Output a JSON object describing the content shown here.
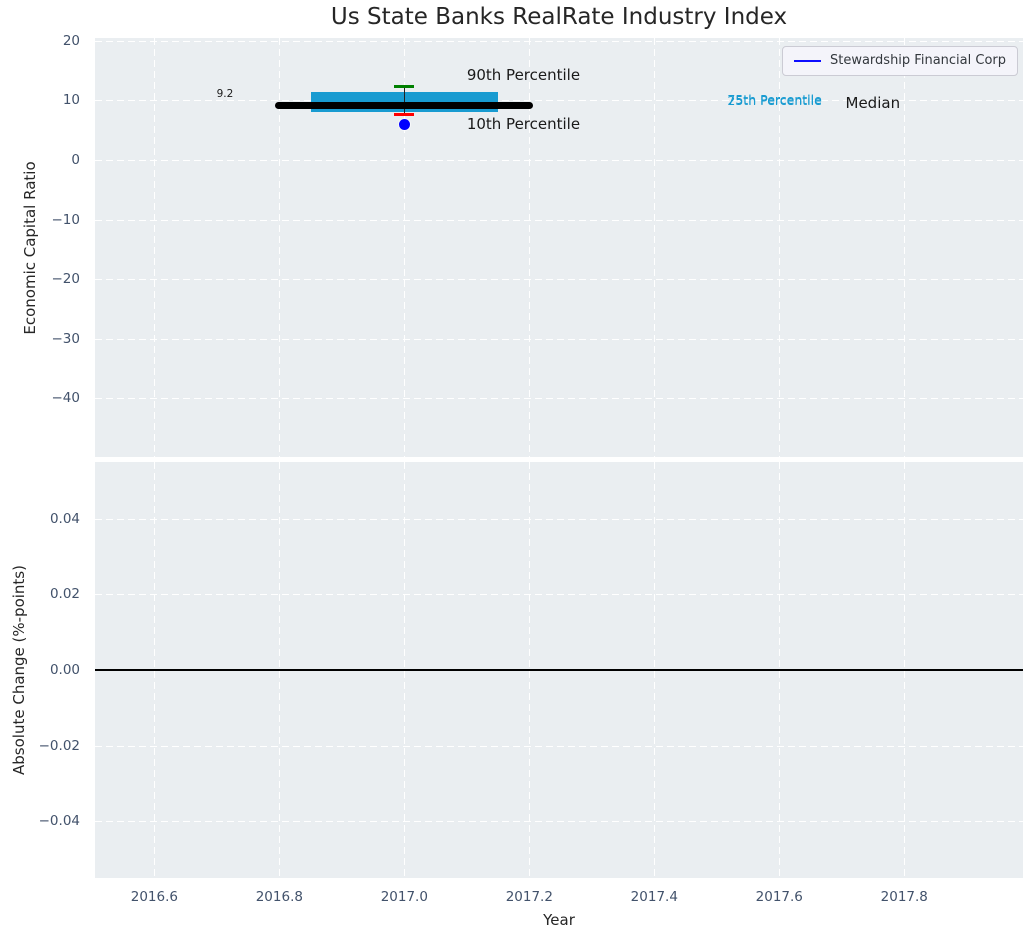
{
  "title": "Us State Banks RealRate Industry Index",
  "xlabel": "Year",
  "legend": {
    "label": "Stewardship Financial Corp",
    "line_color": "#0d0dff"
  },
  "colors": {
    "figure_bg": "#ffffff",
    "axes_bg": "#eaeef1",
    "grid": "#ffffff",
    "box": "#189bd1",
    "median": "#000000",
    "whisker": "#222222",
    "p90_cap": "#008000",
    "p10_cap": "#ff0000",
    "company_point": "#0000ff",
    "zero_line": "#000000",
    "tick_text": "#42526b",
    "label_text": "#262626",
    "cyan_text": "#189bd1"
  },
  "chart_data": {
    "type": "box-timeseries",
    "title": "Us State Banks RealRate Industry Index",
    "xlabel": "Year",
    "xlim": [
      2016.505,
      2017.99
    ],
    "xticks": {
      "values": [
        2016.6,
        2016.8,
        2017.0,
        2017.2,
        2017.4,
        2017.6,
        2017.8
      ],
      "labels": [
        "2016.6",
        "2016.8",
        "2017.0",
        "2017.2",
        "2017.4",
        "2017.6",
        "2017.8"
      ]
    },
    "top": {
      "ylabel": "Economic Capital Ratio",
      "ylim": [
        -49.9,
        20.5
      ],
      "yticks": {
        "values": [
          20,
          10,
          0,
          -10,
          -20,
          -30,
          -40
        ],
        "labels": [
          "20",
          "10",
          "0",
          "−10",
          "−20",
          "−30",
          "−40"
        ]
      },
      "industry_box": {
        "year": 2017.0,
        "median": 9.2,
        "median_x_span": [
          2016.8,
          2017.2
        ],
        "p25": 8.1,
        "p75": 11.4,
        "box_x_span": [
          2016.85,
          2017.15
        ],
        "p10": 7.6,
        "p90": 12.3,
        "cap_half_width": 0.016
      },
      "company_point": {
        "name": "Stewardship Financial Corp",
        "year": 2017.0,
        "value": 6.0
      },
      "annotations": [
        {
          "name": "median-value-label",
          "text": "9.2",
          "x": 2016.713,
          "y": 11.0,
          "size": 10.5,
          "color": "#1a1a1a",
          "anchor": "center"
        },
        {
          "name": "p90-label",
          "text": "90th Percentile",
          "x": 2017.1,
          "y": 14.2,
          "size": 15,
          "color": "#1a1a1a",
          "anchor": "left"
        },
        {
          "name": "p10-label",
          "text": "10th Percentile",
          "x": 2017.1,
          "y": 6.0,
          "size": 15,
          "color": "#1a1a1a",
          "anchor": "left"
        },
        {
          "name": "p75-label",
          "text": "75th Percentile",
          "x": 2017.517,
          "y": 10.15,
          "size": 12.5,
          "color": "#189bd1",
          "anchor": "left"
        },
        {
          "name": "p25-label",
          "text": "25th Percentile",
          "x": 2017.517,
          "y": 9.85,
          "size": 12.5,
          "color": "#189bd1",
          "anchor": "left"
        },
        {
          "name": "median-label",
          "text": "Median",
          "x": 2017.706,
          "y": 9.6,
          "size": 15,
          "color": "#1a1a1a",
          "anchor": "left"
        }
      ]
    },
    "bottom": {
      "ylabel": "Absolute Change (%-points)",
      "ylim": [
        -0.055,
        0.055
      ],
      "yticks": {
        "values": [
          0.04,
          0.02,
          0.0,
          -0.02,
          -0.04
        ],
        "labels": [
          "0.04",
          "0.02",
          "0.00",
          "−0.02",
          "−0.04"
        ]
      },
      "zero_line": 0.0
    }
  }
}
